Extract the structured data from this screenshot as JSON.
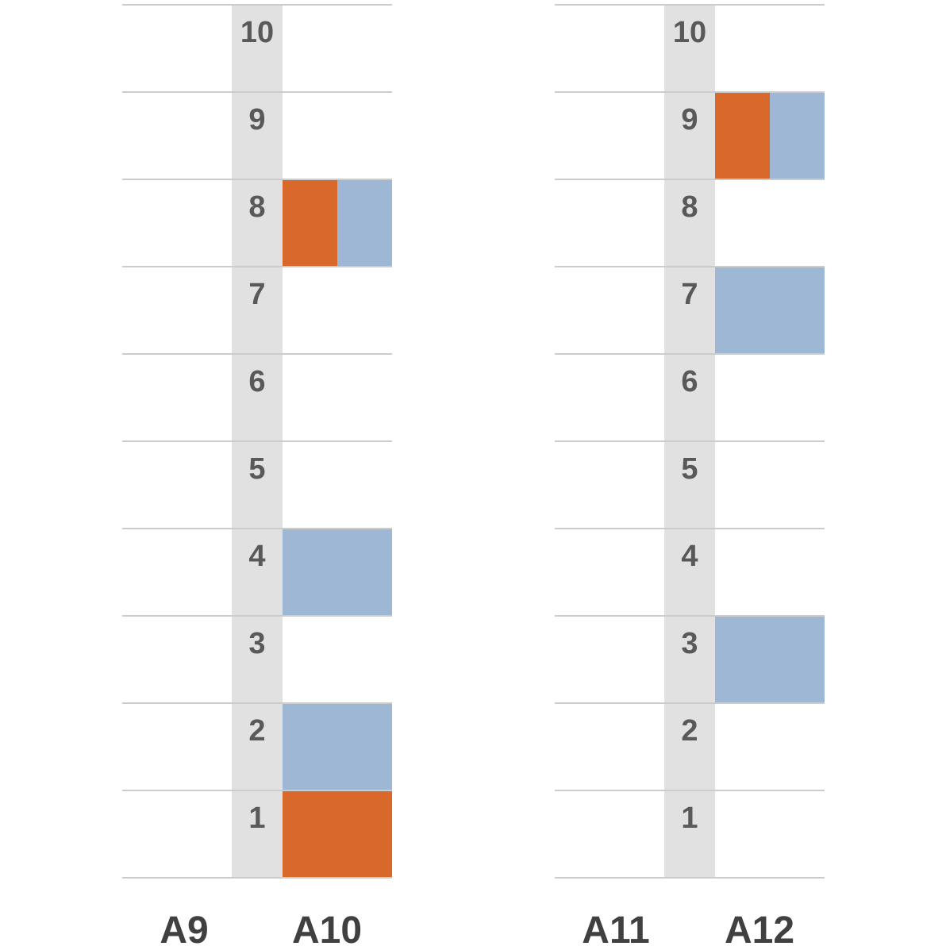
{
  "colors": {
    "orange": "#d9682b",
    "blue": "#9db7d4",
    "spine": "#e0e1e0",
    "line": "#cccccc"
  },
  "levels": [
    "1",
    "2",
    "3",
    "4",
    "5",
    "6",
    "7",
    "8",
    "9",
    "10"
  ],
  "columns": [
    {
      "left_label": "A9",
      "right_label": "A10",
      "cells": [
        {
          "level": 1,
          "fill": "orange"
        },
        {
          "level": 2,
          "fill": "blue"
        },
        {
          "level": 4,
          "fill": "blue"
        },
        {
          "level": 8,
          "fill": "split"
        }
      ]
    },
    {
      "left_label": "A11",
      "right_label": "A12",
      "cells": [
        {
          "level": 3,
          "fill": "blue"
        },
        {
          "level": 7,
          "fill": "blue"
        },
        {
          "level": 9,
          "fill": "split"
        }
      ]
    }
  ]
}
